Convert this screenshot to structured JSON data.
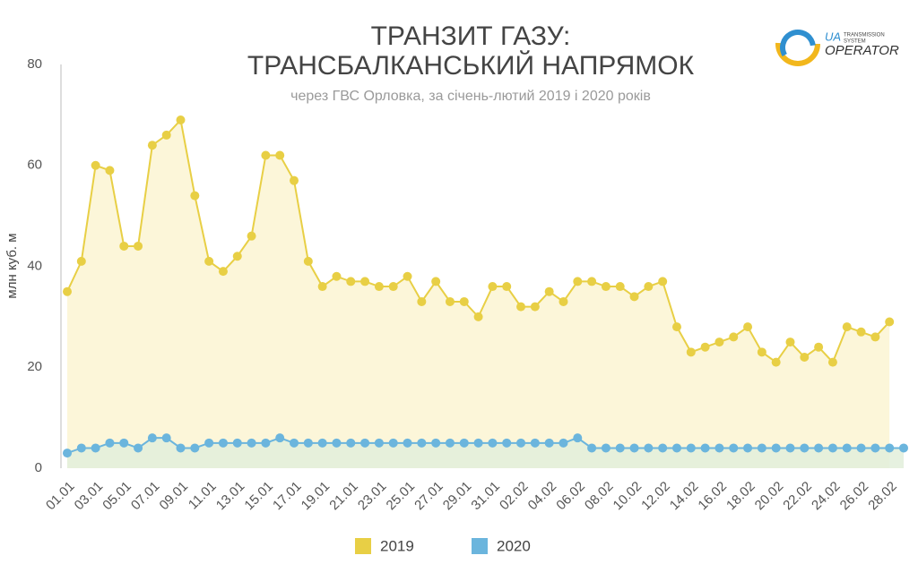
{
  "chart_data": {
    "type": "line",
    "title": [
      "ТРАНЗИТ ГАЗУ:",
      "ТРАНСБАЛКАНСЬКИЙ НАПРЯМОК"
    ],
    "subtitle": "через ГВС Орловка, за січень-лютий 2019 і 2020 років",
    "y_label": "млн куб. м",
    "logo": {
      "mark": "UA",
      "small": [
        "TRANSMISSION",
        "SYSTEM"
      ],
      "name": "OPERATOR"
    },
    "categories": [
      "01.01",
      null,
      "03.01",
      null,
      "05.01",
      null,
      "07.01",
      null,
      "09.01",
      null,
      "11.01",
      null,
      "13.01",
      null,
      "15.01",
      null,
      "17.01",
      null,
      "19.01",
      null,
      "21.01",
      null,
      "23.01",
      null,
      "25.01",
      null,
      "27.01",
      null,
      "29.01",
      null,
      "31.01",
      null,
      "02.02",
      null,
      "04.02",
      null,
      "06.02",
      null,
      "08.02",
      null,
      "10.02",
      null,
      "12.02",
      null,
      "14.02",
      null,
      "16.02",
      null,
      "18.02",
      null,
      "20.02",
      null,
      "22.02",
      null,
      "24.02",
      null,
      "26.02",
      null,
      "28.02",
      null
    ],
    "series": [
      {
        "name": "2019",
        "color": "#e8cf45",
        "fill": "#fbf5d2",
        "values": [
          35,
          41,
          60,
          59,
          44,
          44,
          64,
          66,
          69,
          54,
          41,
          39,
          42,
          46,
          62,
          62,
          57,
          41,
          36,
          38,
          37,
          37,
          36,
          36,
          38,
          33,
          37,
          33,
          33,
          30,
          36,
          36,
          32,
          32,
          35,
          33,
          37,
          37,
          36,
          36,
          34,
          36,
          37,
          28,
          23,
          24,
          25,
          26,
          28,
          23,
          21,
          25,
          22,
          24,
          21,
          28,
          27,
          26,
          29,
          null
        ]
      },
      {
        "name": "2020",
        "color": "#6bb5dd",
        "fill": "#e2eedb",
        "values": [
          3,
          4,
          4,
          5,
          5,
          4,
          6,
          6,
          4,
          4,
          5,
          5,
          5,
          5,
          5,
          6,
          5,
          5,
          5,
          5,
          5,
          5,
          5,
          5,
          5,
          5,
          5,
          5,
          5,
          5,
          5,
          5,
          5,
          5,
          5,
          5,
          6,
          4,
          4,
          4,
          4,
          4,
          4,
          4,
          4,
          4,
          4,
          4,
          4,
          4,
          4,
          4,
          4,
          4,
          4,
          4,
          4,
          4,
          4,
          4
        ]
      }
    ],
    "ylim": [
      0,
      80
    ],
    "yticks": [
      0,
      20,
      40,
      60,
      80
    ],
    "grid": false,
    "legend": "bottom"
  }
}
